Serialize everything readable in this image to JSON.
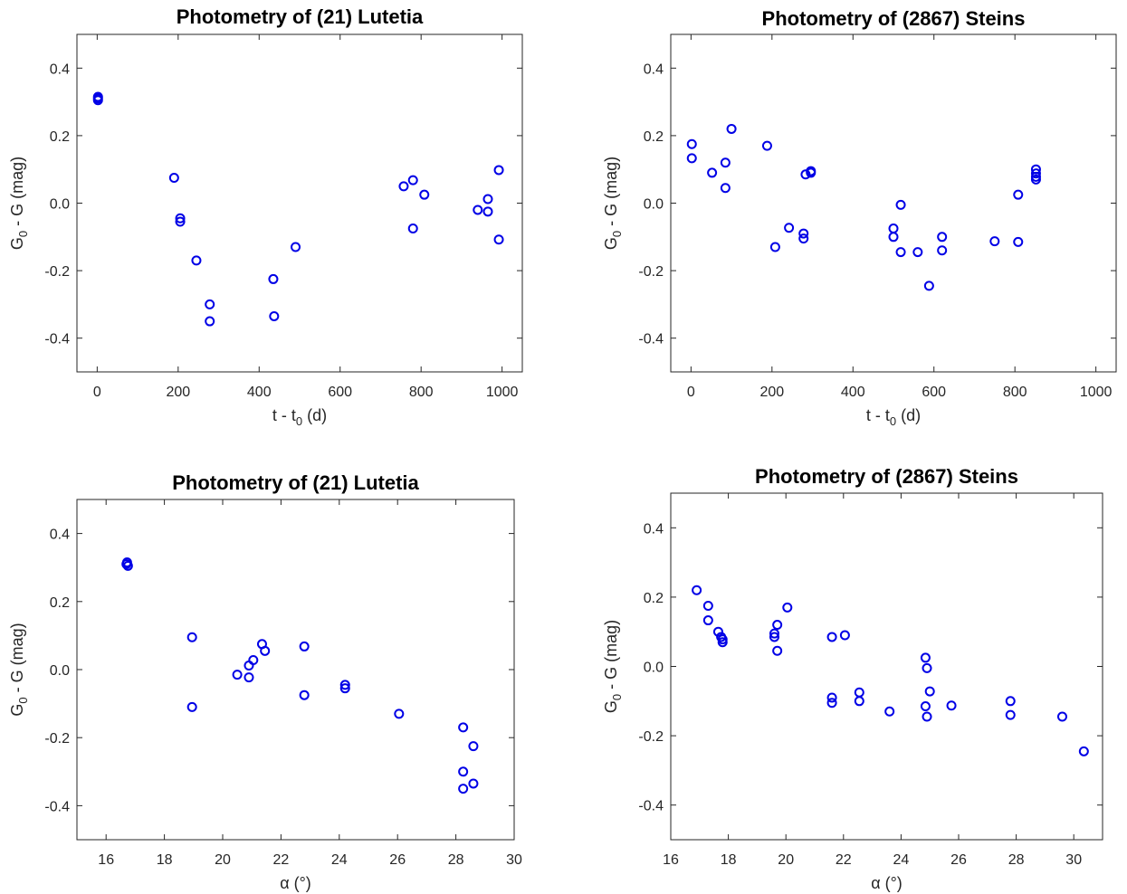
{
  "chart_data": [
    {
      "id": "lutetia-time",
      "type": "scatter",
      "title": "Photometry of (21) Lutetia",
      "xlabel": {
        "base": "t - t",
        "sub": "0",
        "unit": " (d)"
      },
      "ylabel": {
        "base": "G",
        "sub": "0",
        "rest": " - G (mag)"
      },
      "xlim": [
        -50,
        1050
      ],
      "ylim": [
        -0.5,
        0.5
      ],
      "xticks": [
        0,
        200,
        400,
        600,
        800,
        1000
      ],
      "xtick_labels": [
        "0",
        "200",
        "400",
        "600",
        "800",
        "1000"
      ],
      "yticks": [
        -0.4,
        -0.2,
        0.0,
        0.2,
        0.4
      ],
      "ytick_labels": [
        "-0.4",
        "-0.2",
        "0.0",
        "0.2",
        "0.4"
      ],
      "grid": false,
      "marker_color": "#0000e6",
      "points": [
        [
          2,
          0.31
        ],
        [
          2,
          0.315
        ],
        [
          2,
          0.305
        ],
        [
          190,
          0.075
        ],
        [
          205,
          -0.045
        ],
        [
          205,
          -0.055
        ],
        [
          245,
          -0.17
        ],
        [
          278,
          -0.3
        ],
        [
          278,
          -0.35
        ],
        [
          435,
          -0.225
        ],
        [
          437,
          -0.335
        ],
        [
          490,
          -0.13
        ],
        [
          757,
          0.05
        ],
        [
          780,
          0.068
        ],
        [
          780,
          -0.075
        ],
        [
          808,
          0.025
        ],
        [
          940,
          -0.02
        ],
        [
          965,
          0.012
        ],
        [
          965,
          -0.025
        ],
        [
          992,
          0.098
        ],
        [
          992,
          -0.108
        ]
      ]
    },
    {
      "id": "steins-time",
      "type": "scatter",
      "title": "Photometry of (2867) Steins",
      "xlabel": {
        "base": "t - t",
        "sub": "0",
        "unit": " (d)"
      },
      "ylabel": {
        "base": "G",
        "sub": "0",
        "rest": " - G (mag)"
      },
      "xlim": [
        -50,
        1050
      ],
      "ylim": [
        -0.5,
        0.5
      ],
      "xticks": [
        0,
        200,
        400,
        600,
        800,
        1000
      ],
      "xtick_labels": [
        "0",
        "200",
        "400",
        "600",
        "800",
        "1000"
      ],
      "yticks": [
        -0.4,
        -0.2,
        0.0,
        0.2,
        0.4
      ],
      "ytick_labels": [
        "-0.4",
        "-0.2",
        "0.0",
        "0.2",
        "0.4"
      ],
      "grid": false,
      "marker_color": "#0000e6",
      "points": [
        [
          2,
          0.175
        ],
        [
          2,
          0.133
        ],
        [
          52,
          0.09
        ],
        [
          85,
          0.12
        ],
        [
          85,
          0.045
        ],
        [
          100,
          0.22
        ],
        [
          188,
          0.17
        ],
        [
          208,
          -0.13
        ],
        [
          242,
          -0.073
        ],
        [
          278,
          -0.09
        ],
        [
          278,
          -0.105
        ],
        [
          283,
          0.085
        ],
        [
          296,
          0.09
        ],
        [
          296,
          0.095
        ],
        [
          500,
          -0.075
        ],
        [
          500,
          -0.1
        ],
        [
          518,
          -0.005
        ],
        [
          518,
          -0.145
        ],
        [
          560,
          -0.145
        ],
        [
          588,
          -0.245
        ],
        [
          620,
          -0.1
        ],
        [
          620,
          -0.14
        ],
        [
          750,
          -0.113
        ],
        [
          808,
          0.025
        ],
        [
          808,
          -0.115
        ],
        [
          852,
          0.1
        ],
        [
          852,
          0.088
        ],
        [
          852,
          0.078
        ],
        [
          852,
          0.07
        ]
      ]
    },
    {
      "id": "lutetia-phase",
      "type": "scatter",
      "title": "Photometry of (21) Lutetia",
      "xlabel": {
        "base": "α (°)",
        "sub": "",
        "unit": ""
      },
      "ylabel": {
        "base": "G",
        "sub": "0",
        "rest": " - G (mag)"
      },
      "xlim": [
        15,
        30
      ],
      "ylim": [
        -0.5,
        0.5
      ],
      "xticks": [
        16,
        18,
        20,
        22,
        24,
        26,
        28,
        30
      ],
      "xtick_labels": [
        "16",
        "18",
        "20",
        "22",
        "24",
        "26",
        "28",
        "30"
      ],
      "yticks": [
        -0.4,
        -0.2,
        0.0,
        0.2,
        0.4
      ],
      "ytick_labels": [
        "-0.4",
        "-0.2",
        "0.0",
        "0.2",
        "0.4"
      ],
      "grid": false,
      "marker_color": "#0000e6",
      "points": [
        [
          16.7,
          0.31
        ],
        [
          16.72,
          0.315
        ],
        [
          16.75,
          0.305
        ],
        [
          18.95,
          0.095
        ],
        [
          18.95,
          -0.11
        ],
        [
          20.5,
          -0.015
        ],
        [
          20.9,
          0.012
        ],
        [
          20.9,
          -0.023
        ],
        [
          21.05,
          0.028
        ],
        [
          21.35,
          0.075
        ],
        [
          21.45,
          0.055
        ],
        [
          22.8,
          0.068
        ],
        [
          22.8,
          -0.075
        ],
        [
          24.2,
          -0.045
        ],
        [
          24.2,
          -0.055
        ],
        [
          26.05,
          -0.13
        ],
        [
          28.25,
          -0.17
        ],
        [
          28.25,
          -0.3
        ],
        [
          28.25,
          -0.35
        ],
        [
          28.6,
          -0.225
        ],
        [
          28.6,
          -0.335
        ]
      ]
    },
    {
      "id": "steins-phase",
      "type": "scatter",
      "title": "Photometry of (2867) Steins",
      "xlabel": {
        "base": "α (°)",
        "sub": "",
        "unit": ""
      },
      "ylabel": {
        "base": "G",
        "sub": "0",
        "rest": " - G (mag)"
      },
      "xlim": [
        16,
        31
      ],
      "ylim": [
        -0.5,
        0.5
      ],
      "xticks": [
        16,
        18,
        20,
        22,
        24,
        26,
        28,
        30
      ],
      "xtick_labels": [
        "16",
        "18",
        "20",
        "22",
        "24",
        "26",
        "28",
        "30"
      ],
      "yticks": [
        -0.4,
        -0.2,
        0.0,
        0.2,
        0.4
      ],
      "ytick_labels": [
        "-0.4",
        "-0.2",
        "0.0",
        "0.2",
        "0.4"
      ],
      "grid": false,
      "marker_color": "#0000e6",
      "points": [
        [
          16.9,
          0.22
        ],
        [
          17.3,
          0.175
        ],
        [
          17.3,
          0.133
        ],
        [
          17.65,
          0.1
        ],
        [
          17.75,
          0.085
        ],
        [
          17.8,
          0.078
        ],
        [
          17.8,
          0.07
        ],
        [
          19.6,
          0.095
        ],
        [
          19.6,
          0.085
        ],
        [
          19.7,
          0.12
        ],
        [
          19.7,
          0.045
        ],
        [
          20.05,
          0.17
        ],
        [
          21.6,
          0.085
        ],
        [
          21.6,
          -0.09
        ],
        [
          21.6,
          -0.105
        ],
        [
          22.05,
          0.09
        ],
        [
          22.55,
          -0.075
        ],
        [
          22.55,
          -0.1
        ],
        [
          23.6,
          -0.13
        ],
        [
          24.85,
          0.025
        ],
        [
          24.9,
          -0.005
        ],
        [
          24.85,
          -0.115
        ],
        [
          24.9,
          -0.145
        ],
        [
          25.0,
          -0.072
        ],
        [
          25.75,
          -0.113
        ],
        [
          27.8,
          -0.1
        ],
        [
          27.8,
          -0.14
        ],
        [
          29.6,
          -0.145
        ],
        [
          30.35,
          -0.245
        ]
      ]
    }
  ]
}
